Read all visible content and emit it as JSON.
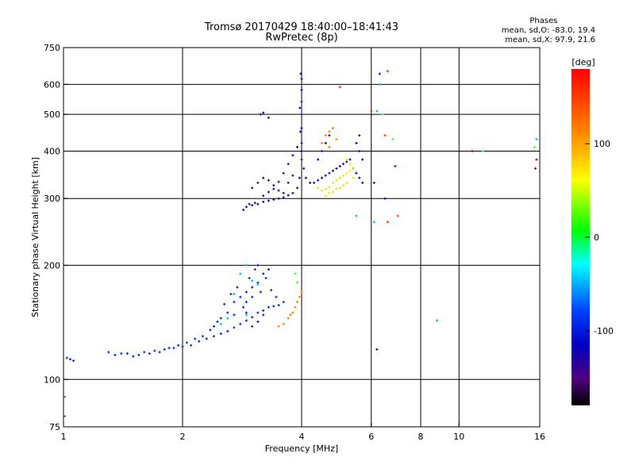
{
  "chart_data": {
    "type": "scatter",
    "title": "Tromsø 20170429 18:40:00–18:41:43",
    "subtitle": "RwPretec (8p)",
    "xlabel": "Frequency [MHz]",
    "ylabel": "Stationary phase Virtual Height [km]",
    "x_scale": "log",
    "y_scale": "log",
    "xlim": [
      1,
      16
    ],
    "ylim": [
      75,
      750
    ],
    "x_ticks": [
      1,
      2,
      4,
      6,
      8,
      10,
      16
    ],
    "y_ticks": [
      75,
      100,
      200,
      300,
      400,
      500,
      600,
      750
    ],
    "x_gridlines": [
      2,
      4,
      6,
      8,
      10
    ],
    "y_gridlines": [
      100,
      200,
      300,
      400,
      500,
      600
    ],
    "grid": true,
    "legend": {
      "title": "Phases",
      "line1": "mean, sd,O: -83.0, 19.4",
      "line2": "mean, sd,X:  97.9, 21.6",
      "placement": "top-right"
    },
    "colorbar": {
      "label": "[deg]",
      "ticks": [
        100,
        0,
        -100
      ],
      "range": [
        -180,
        180
      ],
      "colors": [
        "#ff0000",
        "#ff8000",
        "#ffff00",
        "#00ff00",
        "#00ffff",
        "#0040ff",
        "#0000c0",
        "#500080",
        "#000000"
      ]
    },
    "series": [
      {
        "phase": -100,
        "points": [
          [
            1.02,
            114
          ],
          [
            1.04,
            113
          ],
          [
            1.06,
            112
          ],
          [
            1.3,
            118
          ],
          [
            1.35,
            116
          ],
          [
            1.45,
            117
          ],
          [
            1.55,
            116
          ],
          [
            1.6,
            118
          ],
          [
            1.7,
            119
          ],
          [
            1.8,
            120
          ],
          [
            1.9,
            121
          ],
          [
            2.0,
            122
          ],
          [
            2.1,
            123
          ],
          [
            2.2,
            126
          ],
          [
            2.3,
            128
          ],
          [
            2.4,
            130
          ],
          [
            2.5,
            132
          ],
          [
            2.6,
            134
          ],
          [
            2.7,
            137
          ],
          [
            2.8,
            140
          ],
          [
            2.9,
            143
          ],
          [
            3.0,
            146
          ],
          [
            3.1,
            150
          ],
          [
            3.2,
            152
          ],
          [
            3.3,
            155
          ],
          [
            3.4,
            156
          ],
          [
            3.5,
            157
          ],
          [
            3.6,
            160
          ],
          [
            2.6,
            150
          ],
          [
            2.7,
            160
          ],
          [
            2.8,
            165
          ],
          [
            2.9,
            170
          ],
          [
            3.0,
            175
          ],
          [
            3.1,
            180
          ],
          [
            3.2,
            190
          ],
          [
            3.3,
            195
          ],
          [
            2.5,
            145
          ],
          [
            2.4,
            138
          ],
          [
            2.9,
            160
          ],
          [
            3.0,
            165
          ],
          [
            2.7,
            148
          ],
          [
            3.15,
            170
          ],
          [
            2.85,
            155
          ],
          [
            2.95,
            185
          ],
          [
            3.05,
            195
          ],
          [
            3.1,
            200
          ],
          [
            2.75,
            175
          ],
          [
            2.65,
            168
          ],
          [
            2.55,
            158
          ],
          [
            2.45,
            142
          ],
          [
            2.35,
            135
          ],
          [
            2.25,
            130
          ],
          [
            2.15,
            128
          ],
          [
            2.05,
            125
          ],
          [
            1.95,
            123
          ],
          [
            1.85,
            121
          ],
          [
            1.75,
            118
          ],
          [
            1.65,
            117
          ],
          [
            1.5,
            115
          ],
          [
            1.4,
            117
          ],
          [
            3.25,
            185
          ],
          [
            3.35,
            172
          ],
          [
            3.45,
            165
          ],
          [
            2.9,
            150
          ],
          [
            3.0,
            138
          ],
          [
            3.1,
            142
          ],
          [
            3.2,
            148
          ]
        ]
      },
      {
        "phase": -110,
        "points": [
          [
            2.85,
            280
          ],
          [
            2.9,
            285
          ],
          [
            2.95,
            290
          ],
          [
            3.0,
            288
          ],
          [
            3.05,
            292
          ],
          [
            3.1,
            290
          ],
          [
            3.2,
            294
          ],
          [
            3.3,
            296
          ],
          [
            3.4,
            298
          ],
          [
            3.5,
            300
          ],
          [
            3.6,
            302
          ],
          [
            3.7,
            306
          ],
          [
            3.8,
            310
          ],
          [
            3.9,
            320
          ],
          [
            3.95,
            340
          ],
          [
            4.0,
            380
          ],
          [
            4.0,
            420
          ],
          [
            4.0,
            460
          ],
          [
            4.0,
            500
          ],
          [
            4.0,
            540
          ],
          [
            4.0,
            580
          ],
          [
            4.0,
            620
          ],
          [
            3.98,
            640
          ],
          [
            3.96,
            520
          ],
          [
            3.97,
            450
          ],
          [
            3.99,
            400
          ],
          [
            4.05,
            360
          ],
          [
            4.1,
            340
          ],
          [
            4.2,
            330
          ],
          [
            4.3,
            330
          ],
          [
            4.4,
            335
          ],
          [
            4.5,
            340
          ],
          [
            4.6,
            345
          ],
          [
            4.7,
            350
          ],
          [
            4.8,
            355
          ],
          [
            4.9,
            360
          ],
          [
            5.0,
            365
          ],
          [
            5.1,
            370
          ],
          [
            5.2,
            375
          ],
          [
            5.3,
            380
          ],
          [
            5.4,
            360
          ],
          [
            5.5,
            350
          ],
          [
            5.6,
            340
          ],
          [
            5.7,
            330
          ],
          [
            3.0,
            320
          ],
          [
            3.1,
            330
          ],
          [
            3.2,
            340
          ],
          [
            3.3,
            335
          ],
          [
            3.4,
            325
          ],
          [
            3.5,
            315
          ],
          [
            3.6,
            310
          ],
          [
            3.7,
            330
          ],
          [
            3.8,
            345
          ],
          [
            3.2,
            305
          ],
          [
            3.3,
            312
          ],
          [
            3.4,
            318
          ],
          [
            3.5,
            332
          ],
          [
            3.6,
            350
          ],
          [
            3.7,
            370
          ],
          [
            3.8,
            390
          ],
          [
            3.9,
            410
          ],
          [
            4.4,
            380
          ],
          [
            4.5,
            400
          ],
          [
            4.6,
            420
          ],
          [
            4.7,
            440
          ],
          [
            5.5,
            420
          ],
          [
            5.6,
            400
          ],
          [
            5.7,
            380
          ],
          [
            5.6,
            440
          ],
          [
            3.15,
            500
          ],
          [
            3.2,
            505
          ],
          [
            3.3,
            490
          ],
          [
            6.3,
            640
          ],
          [
            6.2,
            120
          ],
          [
            6.1,
            330
          ],
          [
            6.5,
            300
          ]
        ]
      },
      {
        "phase": 120,
        "points": [
          [
            4.4,
            320
          ],
          [
            4.5,
            315
          ],
          [
            4.6,
            318
          ],
          [
            4.7,
            322
          ],
          [
            4.8,
            330
          ],
          [
            4.9,
            335
          ],
          [
            5.0,
            340
          ],
          [
            5.1,
            345
          ],
          [
            5.2,
            350
          ],
          [
            5.3,
            355
          ],
          [
            5.4,
            360
          ],
          [
            5.0,
            320
          ],
          [
            5.1,
            325
          ],
          [
            5.2,
            330
          ],
          [
            4.6,
            305
          ],
          [
            4.7,
            310
          ],
          [
            4.8,
            312
          ],
          [
            4.9,
            318
          ],
          [
            5.3,
            370
          ],
          [
            5.2,
            380
          ],
          [
            5.4,
            340
          ]
        ]
      },
      {
        "phase": 150,
        "points": [
          [
            3.6,
            140
          ],
          [
            3.7,
            145
          ],
          [
            3.8,
            150
          ],
          [
            3.85,
            155
          ],
          [
            3.9,
            160
          ],
          [
            3.95,
            165
          ],
          [
            4.0,
            170
          ],
          [
            3.5,
            138
          ],
          [
            3.75,
            148
          ],
          [
            4.5,
            420
          ],
          [
            4.6,
            440
          ],
          [
            4.7,
            450
          ],
          [
            4.8,
            460
          ],
          [
            4.9,
            430
          ],
          [
            4.7,
            410
          ]
        ]
      },
      {
        "phase": 170,
        "points": [
          [
            6.6,
            650
          ],
          [
            6.5,
            440
          ],
          [
            6.6,
            260
          ],
          [
            5.0,
            590
          ],
          [
            6.0,
            510
          ],
          [
            7.0,
            270
          ]
        ]
      },
      {
        "phase": -60,
        "points": [
          [
            2.8,
            190
          ],
          [
            2.9,
            200
          ],
          [
            3.0,
            182
          ],
          [
            3.1,
            178
          ],
          [
            2.7,
            168
          ],
          [
            2.6,
            145
          ],
          [
            2.5,
            140
          ],
          [
            2.9,
            148
          ],
          [
            6.3,
            600
          ],
          [
            6.2,
            510
          ],
          [
            15.7,
            430
          ],
          [
            8.8,
            143
          ],
          [
            6.1,
            260
          ],
          [
            5.5,
            270
          ]
        ]
      },
      {
        "phase": 60,
        "points": [
          [
            3.9,
            180
          ],
          [
            3.85,
            190
          ],
          [
            6.4,
            500
          ],
          [
            6.8,
            430
          ],
          [
            11.5,
            400
          ],
          [
            15.5,
            410
          ]
        ]
      },
      {
        "phase": 200,
        "points": [
          [
            6.9,
            365
          ],
          [
            15.7,
            380
          ],
          [
            15.6,
            360
          ],
          [
            10.8,
            400
          ]
        ]
      }
    ]
  }
}
